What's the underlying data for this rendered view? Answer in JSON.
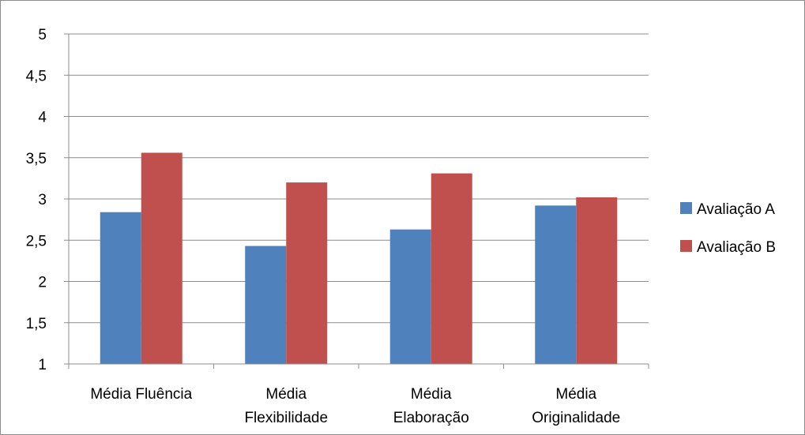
{
  "chart_data": {
    "type": "bar",
    "title": "",
    "xlabel": "",
    "ylabel": "",
    "categories": [
      [
        "Média Fluência"
      ],
      [
        "Média",
        "Flexibilidade"
      ],
      [
        "Média",
        "Elaboração"
      ],
      [
        "Média",
        "Originalidade"
      ]
    ],
    "series": [
      {
        "name": "Avaliação A",
        "color": "#4f81bd",
        "values": [
          2.84,
          2.43,
          2.63,
          2.92
        ]
      },
      {
        "name": "Avaliação B",
        "color": "#c0504d",
        "values": [
          3.56,
          3.2,
          3.31,
          3.02
        ]
      }
    ],
    "ylim": [
      1,
      5
    ],
    "yticks": [
      "1",
      "1,5",
      "2",
      "2,5",
      "3",
      "3,5",
      "4",
      "4,5",
      "5"
    ],
    "grid": true,
    "legend_position": "right"
  }
}
